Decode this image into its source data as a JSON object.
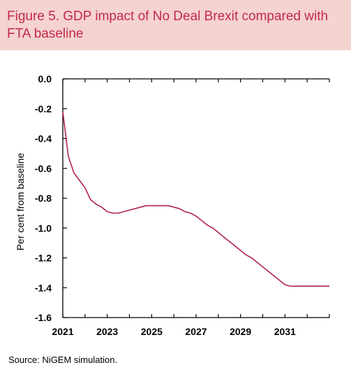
{
  "figure": {
    "title": "Figure 5. GDP impact of No Deal Brexit compared with FTA baseline",
    "source": "Source: NiGEM simulation.",
    "title_background": "#f5d3cf",
    "title_color": "#c3294a"
  },
  "chart_data": {
    "type": "line",
    "title": "Figure 5. GDP impact of No Deal Brexit compared with FTA baseline",
    "xlabel": "",
    "ylabel": "Per cent from baseline",
    "xlim": [
      2021,
      2033
    ],
    "ylim": [
      -1.6,
      0.0
    ],
    "xticks": [
      2021,
      2023,
      2025,
      2027,
      2029,
      2031
    ],
    "x_tick_labels": [
      "2021",
      "2023",
      "2025",
      "2027",
      "2029",
      "2031"
    ],
    "yticks": [
      0.0,
      -0.2,
      -0.4,
      -0.6,
      -0.8,
      -1.0,
      -1.2,
      -1.4,
      -1.6
    ],
    "y_tick_labels": [
      "0.0",
      "-0.2",
      "-0.4",
      "-0.6",
      "-0.8",
      "-1.0",
      "-1.2",
      "-1.4",
      "-1.6"
    ],
    "grid": false,
    "series": [
      {
        "color": "#b0244a",
        "x": [
          2021.0,
          2021.25,
          2021.5,
          2021.75,
          2022.0,
          2022.25,
          2022.5,
          2022.75,
          2023.0,
          2023.25,
          2023.5,
          2023.75,
          2024.0,
          2024.25,
          2024.5,
          2024.75,
          2025.0,
          2025.25,
          2025.5,
          2025.75,
          2026.0,
          2026.25,
          2026.5,
          2026.75,
          2027.0,
          2027.25,
          2027.5,
          2027.75,
          2028.0,
          2028.25,
          2028.5,
          2028.75,
          2029.0,
          2029.25,
          2029.5,
          2029.75,
          2030.0,
          2030.25,
          2030.5,
          2030.75,
          2031.0,
          2031.25,
          2031.5,
          2031.75,
          2032.0,
          2032.25,
          2032.5,
          2032.75,
          2033.0
        ],
        "values": [
          -0.22,
          -0.52,
          -0.63,
          -0.68,
          -0.73,
          -0.81,
          -0.84,
          -0.86,
          -0.89,
          -0.9,
          -0.9,
          -0.89,
          -0.88,
          -0.87,
          -0.86,
          -0.85,
          -0.85,
          -0.85,
          -0.85,
          -0.85,
          -0.86,
          -0.87,
          -0.89,
          -0.9,
          -0.92,
          -0.95,
          -0.98,
          -1.0,
          -1.03,
          -1.06,
          -1.09,
          -1.12,
          -1.15,
          -1.18,
          -1.2,
          -1.23,
          -1.26,
          -1.29,
          -1.32,
          -1.35,
          -1.38,
          -1.39,
          -1.39,
          -1.39,
          -1.39,
          -1.39,
          -1.39,
          -1.39,
          -1.39
        ]
      }
    ]
  }
}
